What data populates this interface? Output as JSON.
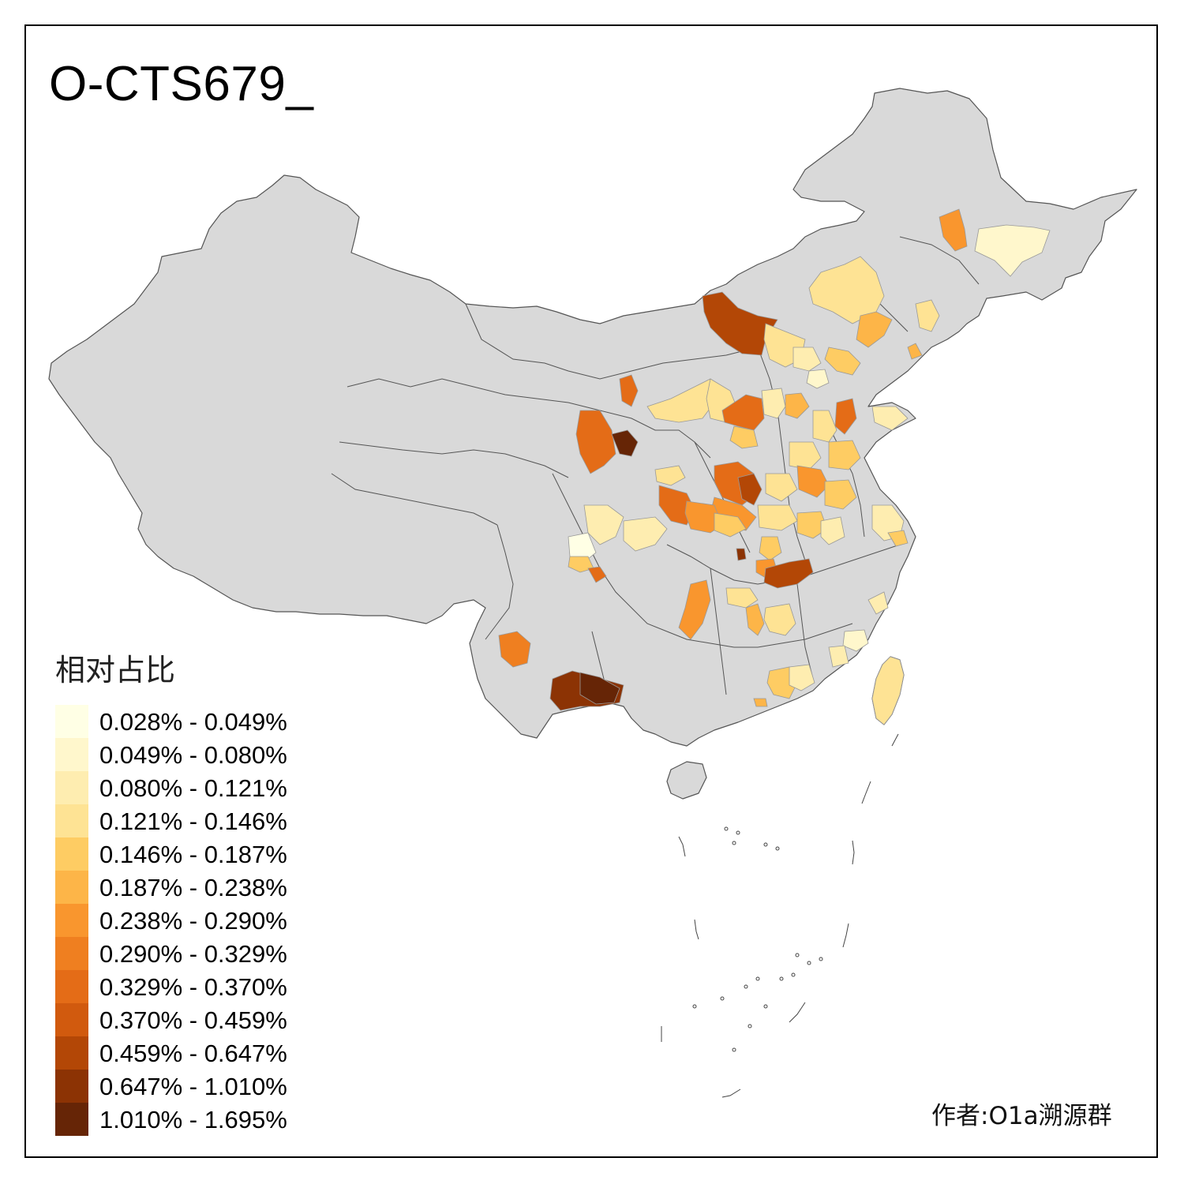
{
  "title": "O-CTS679_",
  "legend": {
    "title": "相对占比",
    "items": [
      {
        "label": "0.028% - 0.049%",
        "color": "#FFFFE5"
      },
      {
        "label": "0.049% - 0.080%",
        "color": "#FFF7CC"
      },
      {
        "label": "0.080% - 0.121%",
        "color": "#FEEDB0"
      },
      {
        "label": "0.121% - 0.146%",
        "color": "#FEE394"
      },
      {
        "label": "0.146% - 0.187%",
        "color": "#FECC63"
      },
      {
        "label": "0.187% - 0.238%",
        "color": "#FDB548"
      },
      {
        "label": "0.238% - 0.290%",
        "color": "#F9962E"
      },
      {
        "label": "0.290% - 0.329%",
        "color": "#EF7F20"
      },
      {
        "label": "0.329% - 0.370%",
        "color": "#E46C17"
      },
      {
        "label": "0.370% - 0.459%",
        "color": "#D15A0E"
      },
      {
        "label": "0.459% - 0.647%",
        "color": "#B34706"
      },
      {
        "label": "0.647% - 1.010%",
        "color": "#8C3304"
      },
      {
        "label": "1.010% - 1.695%",
        "color": "#662506"
      }
    ]
  },
  "author": "作者:O1a溯源群",
  "colors": {
    "base_region": "#D9D9D9",
    "border": "#555555",
    "frame": "#000000"
  }
}
